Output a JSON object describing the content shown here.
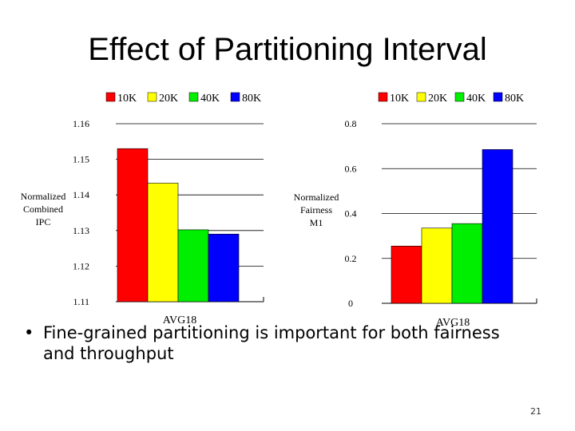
{
  "slide": {
    "title": "Effect of Partitioning Interval",
    "bullet": "Fine-grained partitioning is important for both fairness and throughput",
    "page_number": "21"
  },
  "chart_data": [
    {
      "type": "bar",
      "ylabel_lines": [
        "Normalized",
        "Combined",
        "IPC"
      ],
      "categories": [
        "AVG18"
      ],
      "series": [
        {
          "name": "10K",
          "color": "#ff0000",
          "values": [
            1.153
          ]
        },
        {
          "name": "20K",
          "color": "#ffff00",
          "values": [
            1.1433
          ]
        },
        {
          "name": "40K",
          "color": "#00ee00",
          "values": [
            1.1302
          ]
        },
        {
          "name": "80K",
          "color": "#0000ff",
          "values": [
            1.129
          ]
        }
      ],
      "ylim": [
        1.11,
        1.16
      ],
      "yticks": [
        1.11,
        1.12,
        1.13,
        1.14,
        1.15,
        1.16
      ],
      "ytick_labels": [
        "1.11",
        "1.12",
        "1.13",
        "1.14",
        "1.15",
        "1.16"
      ],
      "grid": true,
      "legend": "top"
    },
    {
      "type": "bar",
      "ylabel_lines": [
        "Normalized",
        "Fairness",
        "M1"
      ],
      "categories": [
        "AVG18"
      ],
      "series": [
        {
          "name": "10K",
          "color": "#ff0000",
          "values": [
            0.255
          ]
        },
        {
          "name": "20K",
          "color": "#ffff00",
          "values": [
            0.335
          ]
        },
        {
          "name": "40K",
          "color": "#00ee00",
          "values": [
            0.355
          ]
        },
        {
          "name": "80K",
          "color": "#0000ff",
          "values": [
            0.685
          ]
        }
      ],
      "ylim": [
        0,
        0.8
      ],
      "yticks": [
        0,
        0.2,
        0.4,
        0.6,
        0.8
      ],
      "ytick_labels": [
        "0",
        "0.2",
        "0.4",
        "0.6",
        "0.8"
      ],
      "grid": true,
      "legend": "top"
    }
  ]
}
